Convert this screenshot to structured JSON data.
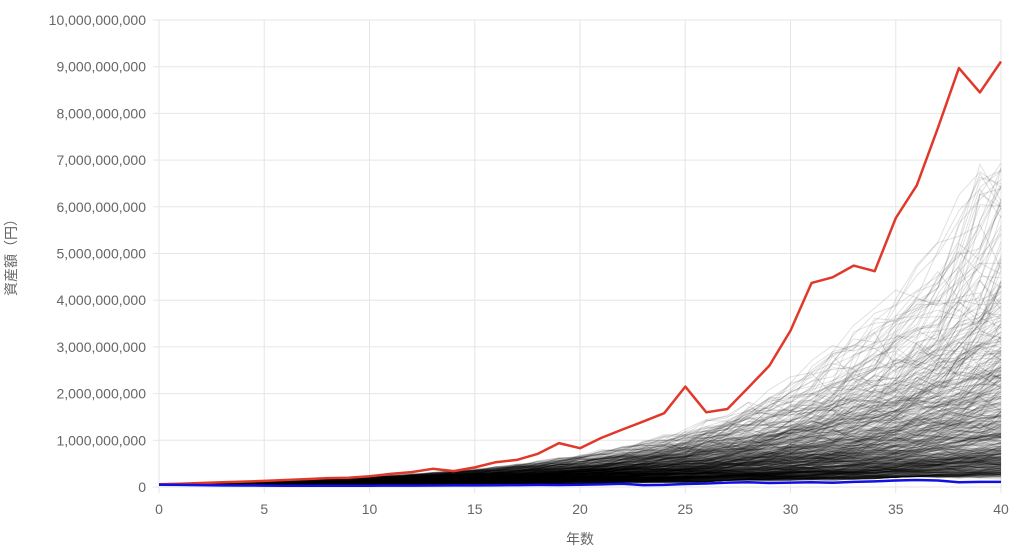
{
  "chart_data": {
    "type": "line",
    "xlabel": "年数",
    "ylabel": "資産額（円）",
    "xlim": [
      0,
      40
    ],
    "ylim": [
      0,
      10000000000
    ],
    "x_ticks": [
      0,
      5,
      10,
      15,
      20,
      25,
      30,
      35,
      40
    ],
    "x_tick_labels": [
      "0",
      "5",
      "10",
      "15",
      "20",
      "25",
      "30",
      "35",
      "40"
    ],
    "y_ticks": [
      0,
      1000000000,
      2000000000,
      3000000000,
      4000000000,
      5000000000,
      6000000000,
      7000000000,
      8000000000,
      9000000000,
      10000000000
    ],
    "y_tick_labels": [
      "0",
      "1,000,000,000",
      "2,000,000,000",
      "3,000,000,000",
      "4,000,000,000",
      "5,000,000,000",
      "6,000,000,000",
      "7,000,000,000",
      "8,000,000,000",
      "9,000,000,000",
      "10,000,000,000"
    ],
    "grid": true,
    "colors": {
      "max": "#e0392b",
      "min": "#1010e0",
      "paths": "#000000",
      "grid": "#e6e6e6"
    },
    "x": [
      0,
      1,
      2,
      3,
      4,
      5,
      6,
      7,
      8,
      9,
      10,
      11,
      12,
      13,
      14,
      15,
      16,
      17,
      18,
      19,
      20,
      21,
      22,
      23,
      24,
      25,
      26,
      27,
      28,
      29,
      30,
      31,
      32,
      33,
      34,
      35,
      36,
      37,
      38,
      39,
      40
    ],
    "series": [
      {
        "role": "max",
        "values": [
          60000000,
          70000000,
          85000000,
          100000000,
          115000000,
          130000000,
          150000000,
          170000000,
          190000000,
          200000000,
          230000000,
          280000000,
          320000000,
          390000000,
          340000000,
          420000000,
          530000000,
          580000000,
          710000000,
          940000000,
          830000000,
          1050000000,
          1230000000,
          1400000000,
          1580000000,
          2150000000,
          1600000000,
          1670000000,
          2130000000,
          2600000000,
          3350000000,
          4370000000,
          4490000000,
          4740000000,
          4620000000,
          5760000000,
          6460000000,
          7690000000,
          8970000000,
          8450000000,
          9110000000
        ]
      },
      {
        "role": "min",
        "values": [
          50000000,
          45000000,
          40000000,
          35000000,
          32000000,
          30000000,
          28000000,
          25000000,
          26000000,
          27000000,
          28000000,
          30000000,
          30000000,
          32000000,
          34000000,
          35000000,
          38000000,
          40000000,
          45000000,
          42000000,
          50000000,
          55000000,
          70000000,
          40000000,
          45000000,
          65000000,
          75000000,
          95000000,
          100000000,
          85000000,
          95000000,
          100000000,
          90000000,
          110000000,
          120000000,
          140000000,
          150000000,
          140000000,
          100000000,
          110000000,
          110000000
        ]
      }
    ],
    "simulated_paths": {
      "count": 600,
      "start_value": 50000000,
      "upper_envelope": [
        60000000,
        68000000,
        80000000,
        95000000,
        110000000,
        125000000,
        145000000,
        165000000,
        185000000,
        205000000,
        230000000,
        260000000,
        290000000,
        320000000,
        360000000,
        400000000,
        450000000,
        500000000,
        560000000,
        640000000,
        720000000,
        810000000,
        900000000,
        1000000000,
        1130000000,
        1280000000,
        1450000000,
        1620000000,
        1850000000,
        2100000000,
        2450000000,
        2800000000,
        3150000000,
        3550000000,
        3950000000,
        4450000000,
        5000000000,
        5600000000,
        6300000000,
        7500000000,
        7000000000
      ]
    }
  }
}
